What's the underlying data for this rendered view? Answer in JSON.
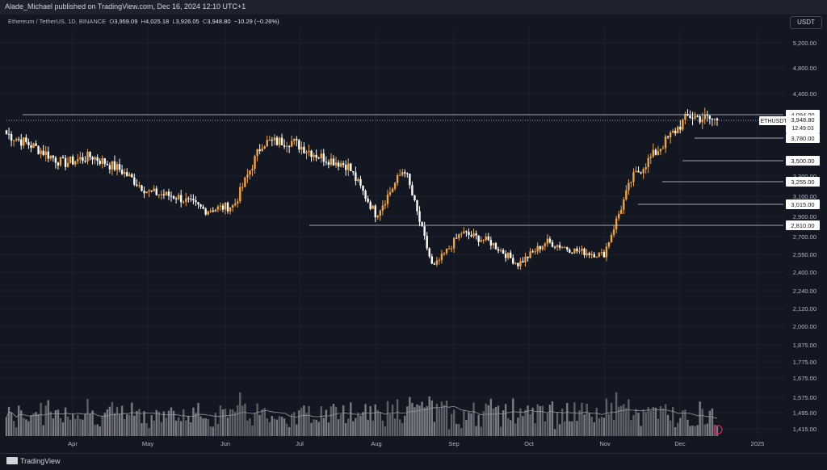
{
  "header": {
    "publisher": "Alade_Michael published on TradingView.com, Dec 16, 2024 12:10 UTC+1"
  },
  "legend": {
    "symbol": "Ethereum / TetherUS, 1D, BINANCE",
    "o_label": "O",
    "o": "3,959.09",
    "h_label": "H",
    "h": "4,025.18",
    "l_label": "L",
    "l": "3,926.05",
    "c_label": "C",
    "c": "3,948.80",
    "change": "−10.29 (−0.26%)"
  },
  "currency_button": "USDT",
  "price_axis": {
    "ticks": [
      "5,200.00",
      "4,800.00",
      "4,400.00",
      "3,300.00",
      "3,100.00",
      "2,900.00",
      "2,700.00",
      "2,550.00",
      "2,400.00",
      "2,240.00",
      "2,120.00",
      "2,000.00",
      "1,875.00",
      "1,775.00",
      "1,675.00",
      "1,575.00",
      "1,495.00",
      "1,415.00"
    ]
  },
  "levels": [
    {
      "label": "4,094.00",
      "solid": true
    },
    {
      "label": "3,780.00",
      "solid": false
    },
    {
      "label": "3,500.00",
      "solid": false
    },
    {
      "label": "3,255.00",
      "solid": false
    },
    {
      "label": "3,015.00",
      "solid": false
    },
    {
      "label": "2,810.00",
      "solid": false
    }
  ],
  "current": {
    "symbol_tag": "ETHUSDT",
    "price": "3,948.80",
    "countdown": "12:49:03"
  },
  "time_axis": [
    "Apr",
    "May",
    "Jun",
    "Jul",
    "Aug",
    "Sep",
    "Oct",
    "Nov",
    "Dec",
    "2025"
  ],
  "footer": {
    "brand": "TradingView"
  },
  "colors": {
    "up": "#f0a33a",
    "down": "#ffffff",
    "bg": "#131722",
    "grid": "#1e222d"
  },
  "chart_data": {
    "type": "candlestick",
    "symbol": "ETHUSDT",
    "interval": "1D",
    "price_waypoints": [
      {
        "x": "Mar",
        "price": 3800
      },
      {
        "x": "Mar",
        "price": 3650
      },
      {
        "x": "Mar",
        "price": 3470
      },
      {
        "x": "Apr",
        "price": 3550
      },
      {
        "x": "Apr",
        "price": 3400
      },
      {
        "x": "Apr",
        "price": 3150
      },
      {
        "x": "May",
        "price": 3100
      },
      {
        "x": "May",
        "price": 2950
      },
      {
        "x": "May",
        "price": 3000
      },
      {
        "x": "May",
        "price": 3700
      },
      {
        "x": "Jun",
        "price": 3720
      },
      {
        "x": "Jun",
        "price": 3550
      },
      {
        "x": "Jul",
        "price": 3450
      },
      {
        "x": "Jul",
        "price": 2900
      },
      {
        "x": "Jul",
        "price": 3420
      },
      {
        "x": "Aug",
        "price": 2300
      },
      {
        "x": "Aug",
        "price": 2700
      },
      {
        "x": "Sep",
        "price": 2600
      },
      {
        "x": "Sep",
        "price": 2350
      },
      {
        "x": "Oct",
        "price": 2600
      },
      {
        "x": "Oct",
        "price": 2500
      },
      {
        "x": "Nov",
        "price": 2450
      },
      {
        "x": "Nov",
        "price": 3300
      },
      {
        "x": "Nov",
        "price": 3650
      },
      {
        "x": "Dec",
        "price": 4000
      },
      {
        "x": "Dec",
        "price": 3948.8
      }
    ]
  }
}
